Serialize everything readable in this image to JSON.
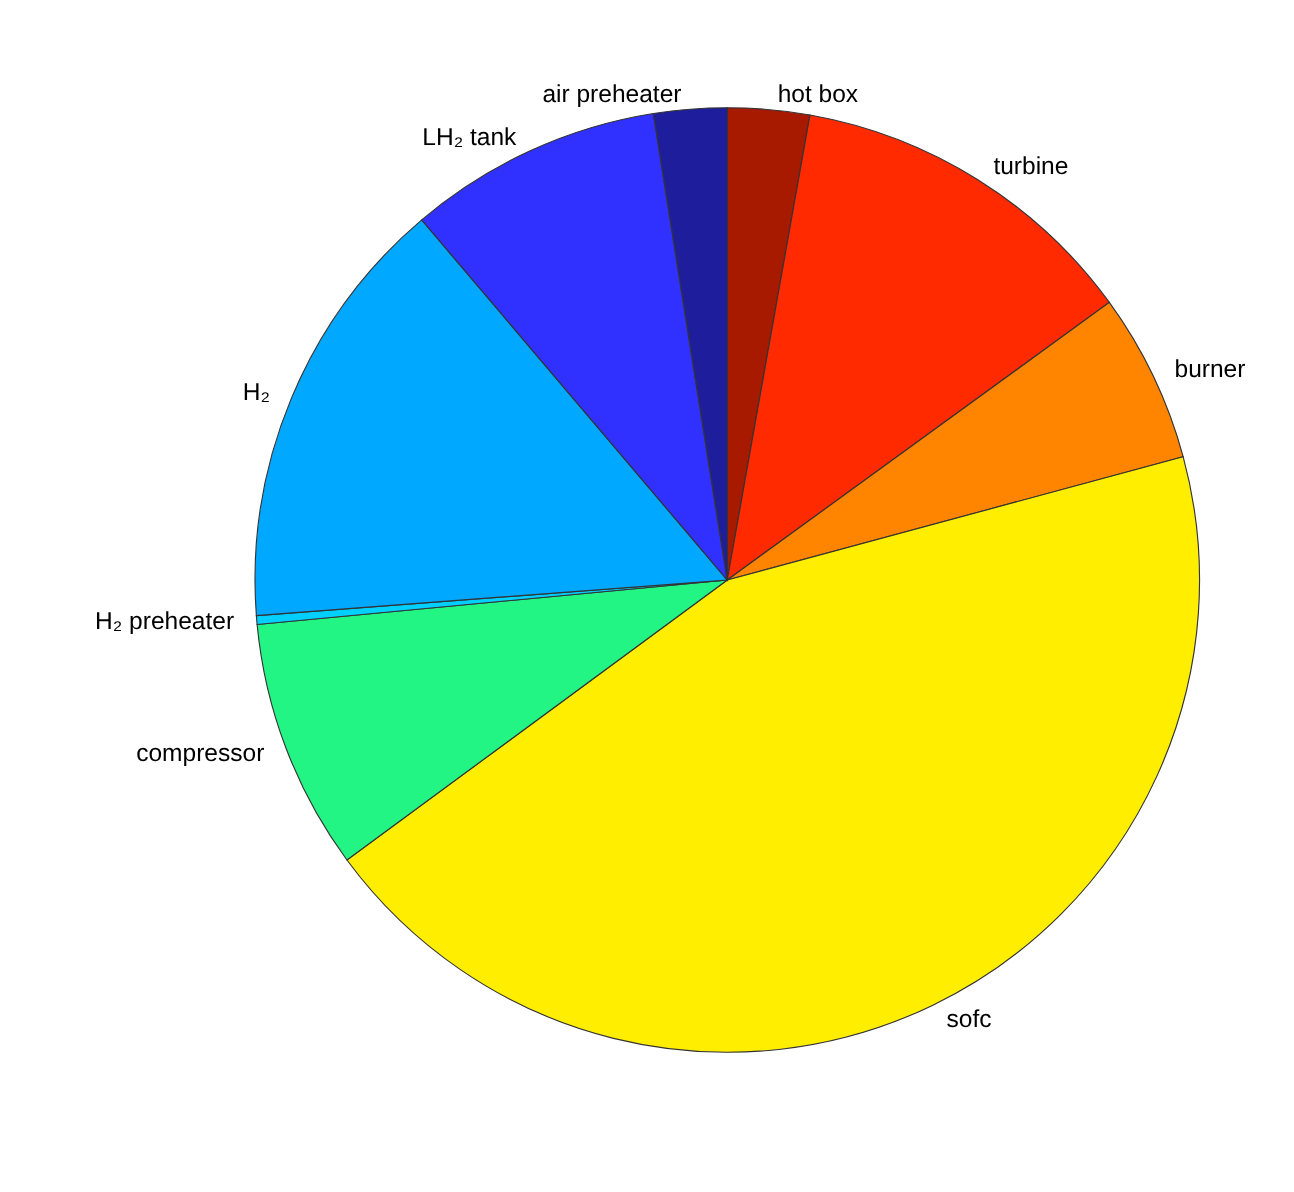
{
  "chart_data": {
    "type": "pie",
    "categories": [
      "hot box",
      "turbine",
      "burner",
      "sofc",
      "compressor",
      "H₂ preheater",
      "H₂",
      "LH₂ tank",
      "air preheater"
    ],
    "values": [
      2.8,
      12.2,
      5.8,
      44.1,
      8.6,
      0.3,
      15,
      8.7,
      2.5
    ],
    "colors": [
      "#a81a00",
      "#ff2a00",
      "#ff8400",
      "#ffee00",
      "#22f584",
      "#00d0ff",
      "#00a8ff",
      "#3030ff",
      "#1e1e9c"
    ],
    "legend": false
  }
}
